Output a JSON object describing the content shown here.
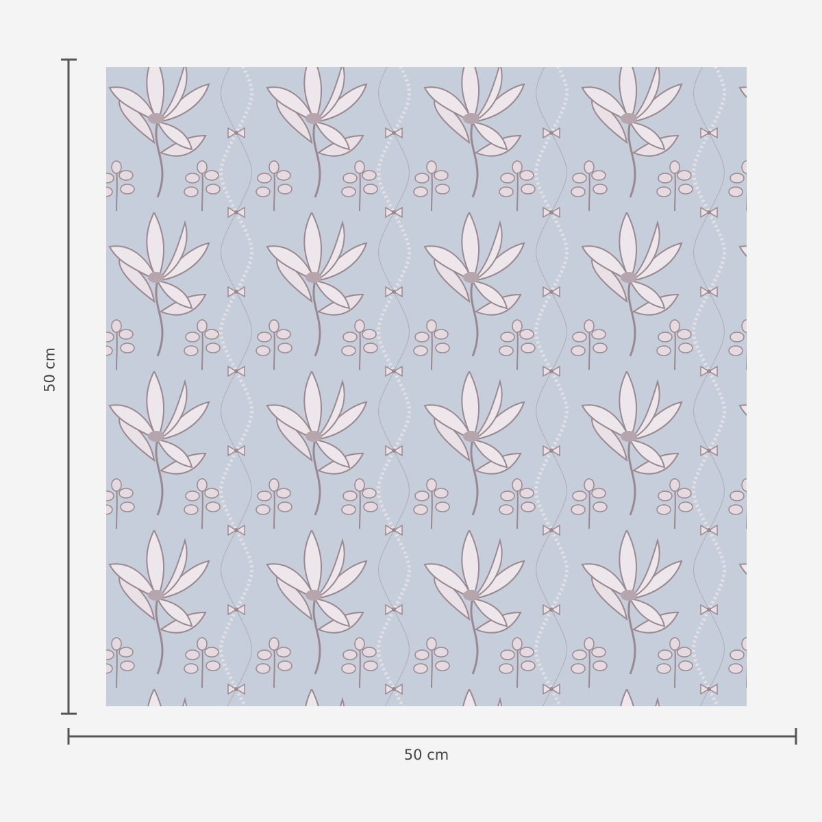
{
  "dimensions": {
    "width_label": "50 cm",
    "height_label": "50 cm"
  },
  "wallpaper": {
    "motifs": [
      "magnolia-flower",
      "leaf-sprig",
      "pearl-chain",
      "bow"
    ],
    "colors": {
      "background": "#c6cedb",
      "motif_outline": "#9a8890",
      "motif_fill": "#e9e1e6",
      "page": "#f4f4f4",
      "dimension_line": "#555555"
    }
  }
}
